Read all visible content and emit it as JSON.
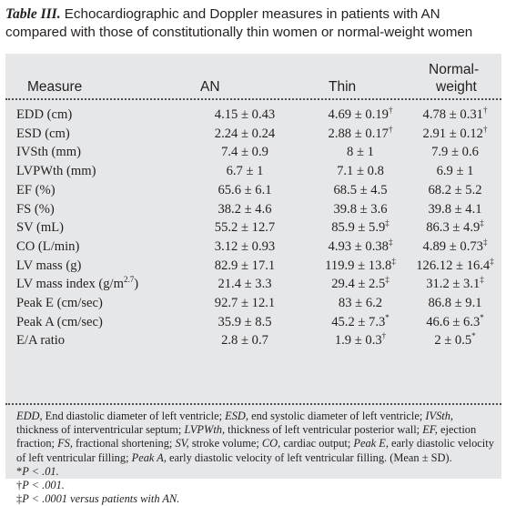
{
  "caption": {
    "label": "Table III.",
    "text": " Echocardiographic and Doppler measures in patients with AN compared with those of constitutionally thin women or normal-weight women"
  },
  "header": {
    "measure": "Measure",
    "an": "AN",
    "thin": "Thin",
    "normal_line1": "Normal-",
    "normal_line2": "weight"
  },
  "rows": [
    {
      "measure": "EDD (cm)",
      "an": "4.15 ± 0.43",
      "thin": "4.69 ± 0.19",
      "thin_mark": "†",
      "normal": "4.78 ± 0.31",
      "normal_mark": "†"
    },
    {
      "measure": "ESD (cm)",
      "an": "2.24 ± 0.24",
      "thin": "2.88 ± 0.17",
      "thin_mark": "†",
      "normal": "2.91 ± 0.12",
      "normal_mark": "†"
    },
    {
      "measure": "IVSth (mm)",
      "an": "7.4 ± 0.9",
      "thin": "8 ± 1",
      "thin_mark": "",
      "normal": "7.9 ± 0.6",
      "normal_mark": ""
    },
    {
      "measure": "LVPWth (mm)",
      "an": "6.7 ± 1",
      "thin": "7.1 ± 0.8",
      "thin_mark": "",
      "normal": "6.9 ± 1",
      "normal_mark": ""
    },
    {
      "measure": "EF (%)",
      "an": "65.6 ± 6.1",
      "thin": "68.5 ± 4.5",
      "thin_mark": "",
      "normal": "68.2 ± 5.2",
      "normal_mark": ""
    },
    {
      "measure": "FS (%)",
      "an": "38.2 ± 4.6",
      "thin": "39.8 ± 3.6",
      "thin_mark": "",
      "normal": "39.8 ± 4.1",
      "normal_mark": ""
    },
    {
      "measure": "SV (mL)",
      "an": "55.2 ± 12.7",
      "thin": "85.9 ± 5.9",
      "thin_mark": "‡",
      "normal": "86.3 ± 4.9",
      "normal_mark": "‡"
    },
    {
      "measure": "CO (L/min)",
      "an": "3.12 ± 0.93",
      "thin": "4.93 ± 0.38",
      "thin_mark": "‡",
      "normal": "4.89 ± 0.73",
      "normal_mark": "‡"
    },
    {
      "measure": "LV mass (g)",
      "an": "82.9 ± 17.1",
      "thin": "119.9 ± 13.8",
      "thin_mark": "‡",
      "normal": "126.12 ± 16.4",
      "normal_mark": "‡"
    },
    {
      "measure": "LV mass index (g/m",
      "measure_sup": "2.7",
      "measure_end": ")",
      "an": "21.4 ± 3.3",
      "thin": "29.4 ± 2.5",
      "thin_mark": "‡",
      "normal": "31.2 ± 3.1",
      "normal_mark": "‡"
    },
    {
      "measure": "Peak E (cm/sec)",
      "an": "92.7 ± 12.1",
      "thin": "83 ± 6.2",
      "thin_mark": "",
      "normal": "86.8 ± 9.1",
      "normal_mark": ""
    },
    {
      "measure": "Peak A (cm/sec)",
      "an": "35.9 ± 8.5",
      "thin": "45.2 ± 7.3",
      "thin_mark": "*",
      "normal": "46.6 ± 6.3",
      "normal_mark": "*"
    },
    {
      "measure": "E/A ratio",
      "an": "2.8 ± 0.7",
      "thin": "1.9 ± 0.3",
      "thin_mark": "†",
      "normal": "2 ± 0.5",
      "normal_mark": "*"
    }
  ],
  "footnote": {
    "abbr": [
      {
        "term": "EDD,",
        "def": " End diastolic diameter of left ventricle; "
      },
      {
        "term": "ESD,",
        "def": " end systolic diameter of left ventricle; "
      },
      {
        "term": "IVSth,",
        "def": " thickness of interventricular septum; "
      },
      {
        "term": "LVPWth,",
        "def": " thickness of left ventricular posterior wall; "
      },
      {
        "term": "EF,",
        "def": " ejection fraction; "
      },
      {
        "term": "FS,",
        "def": " fractional shortening; "
      },
      {
        "term": "SV,",
        "def": " stroke volume; "
      },
      {
        "term": "CO,",
        "def": " cardiac output; "
      },
      {
        "term": "Peak E,",
        "def": " early diastolic velocity of left ventricular filling; "
      },
      {
        "term": "Peak A,",
        "def": " early diastolic velocity of left ventricular filling. (Mean ± SD)."
      }
    ],
    "p_notes": [
      {
        "mark": "*",
        "text": "P < .01."
      },
      {
        "mark": "†",
        "text": "P < .001."
      },
      {
        "mark": "‡",
        "text": "P < .0001 versus patients with AN."
      }
    ]
  }
}
